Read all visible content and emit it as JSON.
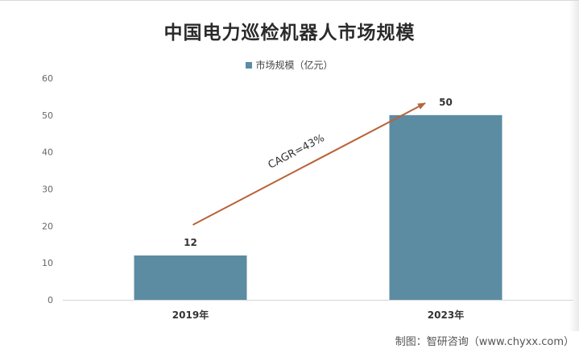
{
  "chart_data": {
    "type": "bar",
    "title": "中国电力巡检机器人市场规模",
    "categories": [
      "2019年",
      "2023年"
    ],
    "series": [
      {
        "name": "市场规模（亿元）",
        "values": [
          12,
          50
        ]
      }
    ],
    "data_labels": [
      "12",
      "50"
    ],
    "ylim": [
      0,
      60
    ],
    "yticks": [
      0,
      10,
      20,
      30,
      40,
      50,
      60
    ],
    "xlabel": "",
    "ylabel": "",
    "grid": false,
    "legend_position": "top-center",
    "annotation": {
      "text": "CAGR=43%"
    },
    "colors": {
      "bar": "#5b8ca2",
      "arrow": "#b8633a"
    }
  },
  "source": "制图：智研咨询（www.chyxx.com）"
}
